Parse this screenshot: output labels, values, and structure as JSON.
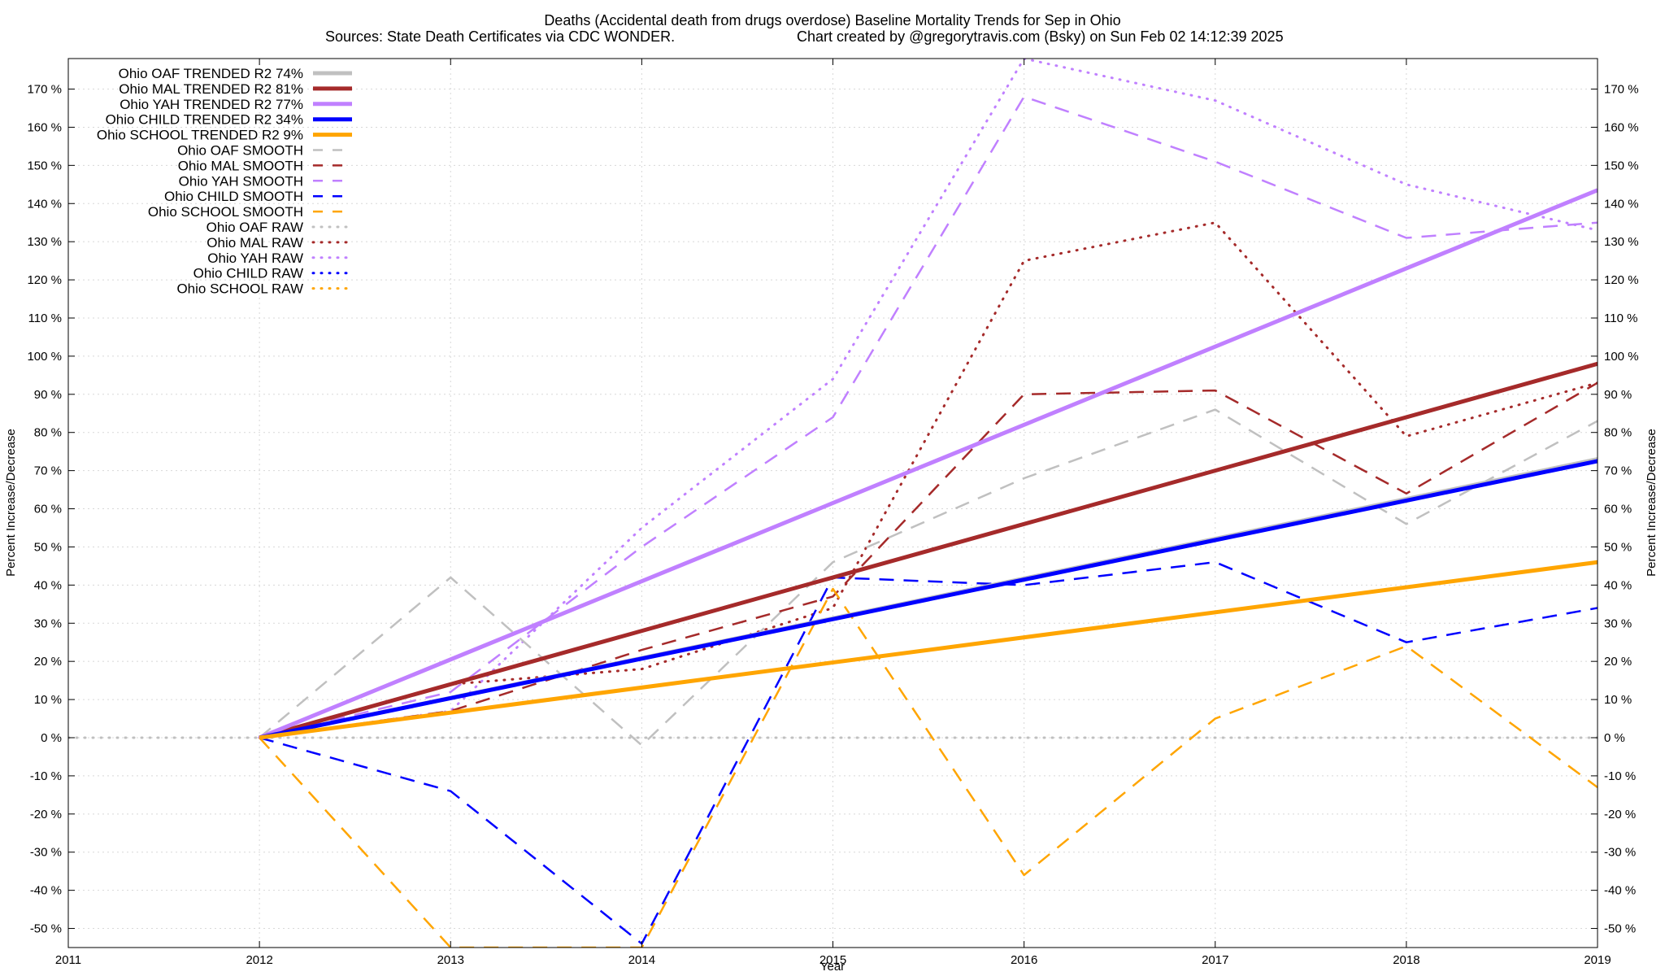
{
  "chart_data": {
    "type": "line",
    "title": "Deaths (Accidental death from drugs overdose)  Baseline Mortality Trends for Sep in Ohio",
    "subtitle_left": "Sources: State Death Certificates via CDC WONDER.",
    "subtitle_right": "Chart created by @gregorytravis.com (Bsky) on Sun Feb 02 14:12:39 2025",
    "xlabel": "Year",
    "ylabel_left": "Percent Increase/Decrease",
    "ylabel_right": "Percent Increase/Decrease",
    "xlim": [
      2011,
      2019
    ],
    "ylim": [
      -55,
      178
    ],
    "x_ticks": [
      "2011",
      "2012",
      "2013",
      "2014",
      "2015",
      "2016",
      "2017",
      "2018",
      "2019"
    ],
    "y_ticks_left": [
      "-50 %",
      "-40 %",
      "-30 %",
      "-20 %",
      "-10 %",
      "0 %",
      "10 %",
      "20 %",
      "30 %",
      "40 %",
      "50 %",
      "60 %",
      "70 %",
      "80 %",
      "90 %",
      "100 %",
      "110 %",
      "120 %",
      "130 %",
      "140 %",
      "150 %",
      "160 %",
      "170 %"
    ],
    "y_ticks_right": [
      "-50 %",
      "-40 %",
      "-30 %",
      "-20 %",
      "-10 %",
      "0 %",
      "10 %",
      "20 %",
      "30 %",
      "40 %",
      "50 %",
      "60 %",
      "70 %",
      "80 %",
      "90 %",
      "100 %",
      "110 %",
      "120 %",
      "130 %",
      "140 %",
      "150 %",
      "160 %",
      "170 %"
    ],
    "y_tick_values": [
      -50,
      -40,
      -30,
      -20,
      -10,
      0,
      10,
      20,
      30,
      40,
      50,
      60,
      70,
      80,
      90,
      100,
      110,
      120,
      130,
      140,
      150,
      160,
      170
    ],
    "grid": true,
    "legend_position": "top-left",
    "series": [
      {
        "name": "Ohio OAF TRENDED R2  74%",
        "style": "trend",
        "color": "#c0c0c0",
        "x": [
          2012,
          2019
        ],
        "y": [
          0,
          73
        ]
      },
      {
        "name": "Ohio MAL TRENDED R2  81%",
        "style": "trend",
        "color": "#a52a2a",
        "x": [
          2012,
          2019
        ],
        "y": [
          0,
          98
        ]
      },
      {
        "name": "Ohio YAH TRENDED R2  77%",
        "style": "trend",
        "color": "#c080ff",
        "x": [
          2012,
          2019
        ],
        "y": [
          0,
          143.5
        ]
      },
      {
        "name": "Ohio CHILD TRENDED R2  34%",
        "style": "trend",
        "color": "#0000ff",
        "x": [
          2012,
          2019
        ],
        "y": [
          0,
          72.5
        ]
      },
      {
        "name": "Ohio SCHOOL TRENDED R2   9%",
        "style": "trend",
        "color": "#ffa500",
        "x": [
          2012,
          2019
        ],
        "y": [
          0,
          46
        ]
      },
      {
        "name": "Ohio OAF SMOOTH",
        "style": "smooth",
        "color": "#c0c0c0",
        "x": [
          2012,
          2013,
          2014,
          2015,
          2016,
          2017,
          2018,
          2019
        ],
        "y": [
          0,
          42,
          -2,
          46,
          68,
          86,
          56,
          83
        ]
      },
      {
        "name": "Ohio MAL SMOOTH",
        "style": "smooth",
        "color": "#a52a2a",
        "x": [
          2012,
          2013,
          2014,
          2015,
          2016,
          2017,
          2018,
          2019
        ],
        "y": [
          0,
          7,
          23,
          37,
          90,
          91,
          64,
          93
        ]
      },
      {
        "name": "Ohio YAH SMOOTH",
        "style": "smooth",
        "color": "#c080ff",
        "x": [
          2012,
          2013,
          2014,
          2015,
          2016,
          2017,
          2018,
          2019
        ],
        "y": [
          0,
          12,
          50,
          84,
          168,
          151,
          131,
          135
        ]
      },
      {
        "name": "Ohio CHILD SMOOTH",
        "style": "smooth",
        "color": "#0000ff",
        "x": [
          2012,
          2013,
          2014,
          2015,
          2016,
          2017,
          2018,
          2019
        ],
        "y": [
          0,
          -14,
          -54,
          42,
          40,
          46,
          25,
          34
        ]
      },
      {
        "name": "Ohio SCHOOL SMOOTH",
        "style": "smooth",
        "color": "#ffa500",
        "x": [
          2012,
          2013,
          2014,
          2015,
          2016,
          2017,
          2018,
          2019
        ],
        "y": [
          0,
          -55,
          -55,
          39,
          -36,
          5,
          24,
          -13
        ]
      },
      {
        "name": "Ohio OAF RAW",
        "style": "raw",
        "color": "#c0c0c0",
        "x": [
          2011,
          2019
        ],
        "y": [
          0,
          0
        ]
      },
      {
        "name": "Ohio MAL RAW",
        "style": "raw",
        "color": "#a52a2a",
        "x": [
          2012,
          2013,
          2014,
          2015,
          2016,
          2017,
          2018,
          2019
        ],
        "y": [
          0,
          14,
          18,
          34,
          125,
          135,
          79,
          93
        ]
      },
      {
        "name": "Ohio YAH RAW",
        "style": "raw",
        "color": "#c080ff",
        "x": [
          2012,
          2013,
          2014,
          2015,
          2016,
          2017,
          2018,
          2019
        ],
        "y": [
          0,
          7,
          55,
          94,
          178,
          167,
          145,
          133
        ]
      },
      {
        "name": "Ohio CHILD RAW",
        "style": "raw",
        "color": "#0000ff",
        "x": [],
        "y": []
      },
      {
        "name": "Ohio SCHOOL RAW",
        "style": "raw",
        "color": "#ffa500",
        "x": [],
        "y": []
      }
    ]
  }
}
